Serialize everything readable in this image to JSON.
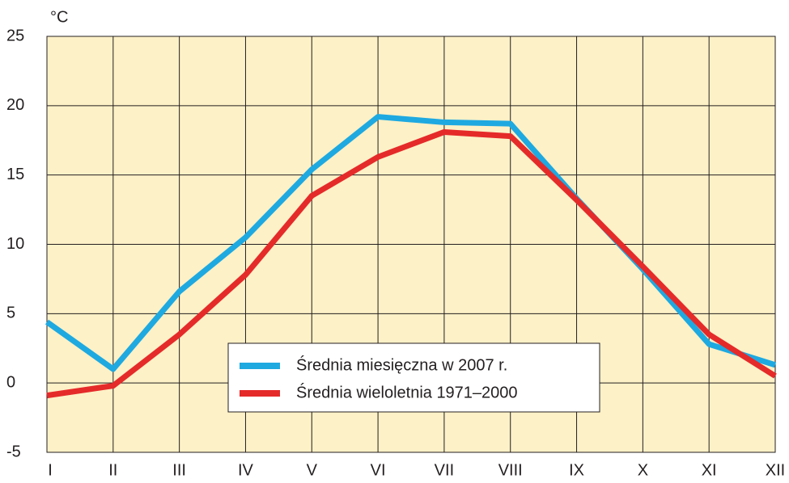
{
  "chart_data": {
    "type": "line",
    "y_label": "°C",
    "categories": [
      "I",
      "II",
      "III",
      "IV",
      "V",
      "VI",
      "VII",
      "VIII",
      "IX",
      "X",
      "XI",
      "XII"
    ],
    "series": [
      {
        "name": "Średnia miesięczna w 2007 r.",
        "color": "#1ea9e1",
        "values": [
          4.4,
          1.0,
          6.6,
          10.5,
          15.4,
          19.2,
          18.8,
          18.7,
          13.3,
          8.2,
          2.8,
          1.3
        ]
      },
      {
        "name": "Średnia wieloletnia 1971–2000",
        "color": "#e52a2a",
        "values": [
          -0.9,
          -0.2,
          3.5,
          7.8,
          13.5,
          16.3,
          18.1,
          17.8,
          13.2,
          8.4,
          3.5,
          0.5
        ]
      }
    ],
    "ylim": [
      -5,
      25
    ],
    "yticks": [
      -5,
      0,
      5,
      10,
      15,
      20,
      25
    ],
    "grid": true,
    "background": "#fdf1c7"
  }
}
